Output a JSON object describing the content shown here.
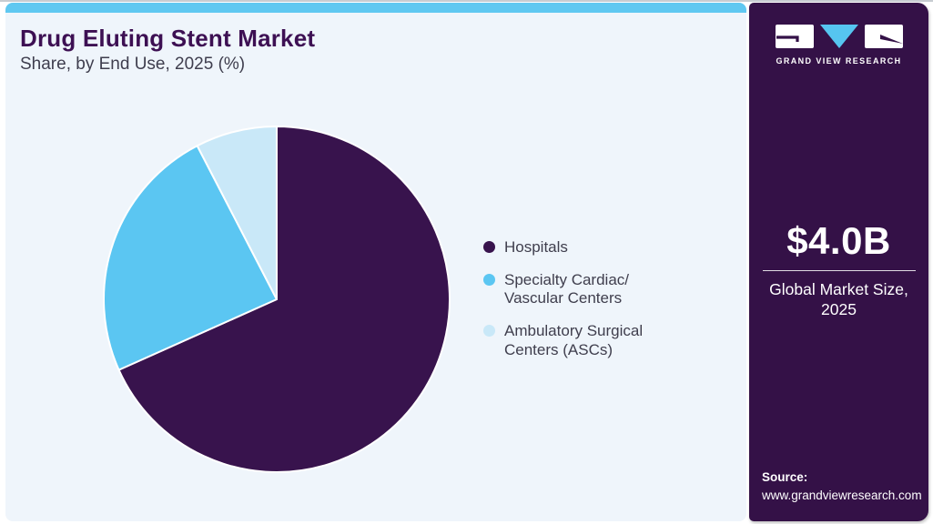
{
  "page": {
    "background": "#ffffff",
    "card_background": "#eff5fb",
    "accent_bar_color": "#5fc8f1"
  },
  "header": {
    "title": "Drug Eluting Stent Market",
    "subtitle": "Share, by End Use, 2025 (%)",
    "title_color": "#3d1053"
  },
  "chart_data": {
    "type": "pie",
    "title": "Drug Eluting Stent Market Share, by End Use, 2025 (%)",
    "unit": "%",
    "categories": [
      "Hospitals",
      "Specialty Cardiac/Vascular Centers",
      "Ambulatory Surgical Centers (ASCs)"
    ],
    "values": [
      68.3,
      24.1,
      7.6
    ],
    "colors": [
      "#38134d",
      "#5bc6f2",
      "#c9e8f8"
    ],
    "start_angle_deg": 0,
    "direction": "clockwise",
    "legend_position": "right",
    "data_labels": false
  },
  "legend": {
    "text_color": "#3f3e4d",
    "items": [
      {
        "label": "Hospitals",
        "color": "#38134d"
      },
      {
        "label": "Specialty Cardiac/\nVascular Centers",
        "color": "#5bc6f2"
      },
      {
        "label": "Ambulatory Surgical\nCenters (ASCs)",
        "color": "#c9e8f8"
      }
    ]
  },
  "sidebar": {
    "background": "#341147",
    "logo": {
      "wordmark": "GRAND VIEW RESEARCH",
      "v_color": "#56c5f0"
    },
    "market_size": {
      "value": "$4.0B",
      "label": "Global Market Size,\n2025"
    },
    "source": {
      "label": "Source:",
      "url": "www.grandviewresearch.com"
    }
  }
}
